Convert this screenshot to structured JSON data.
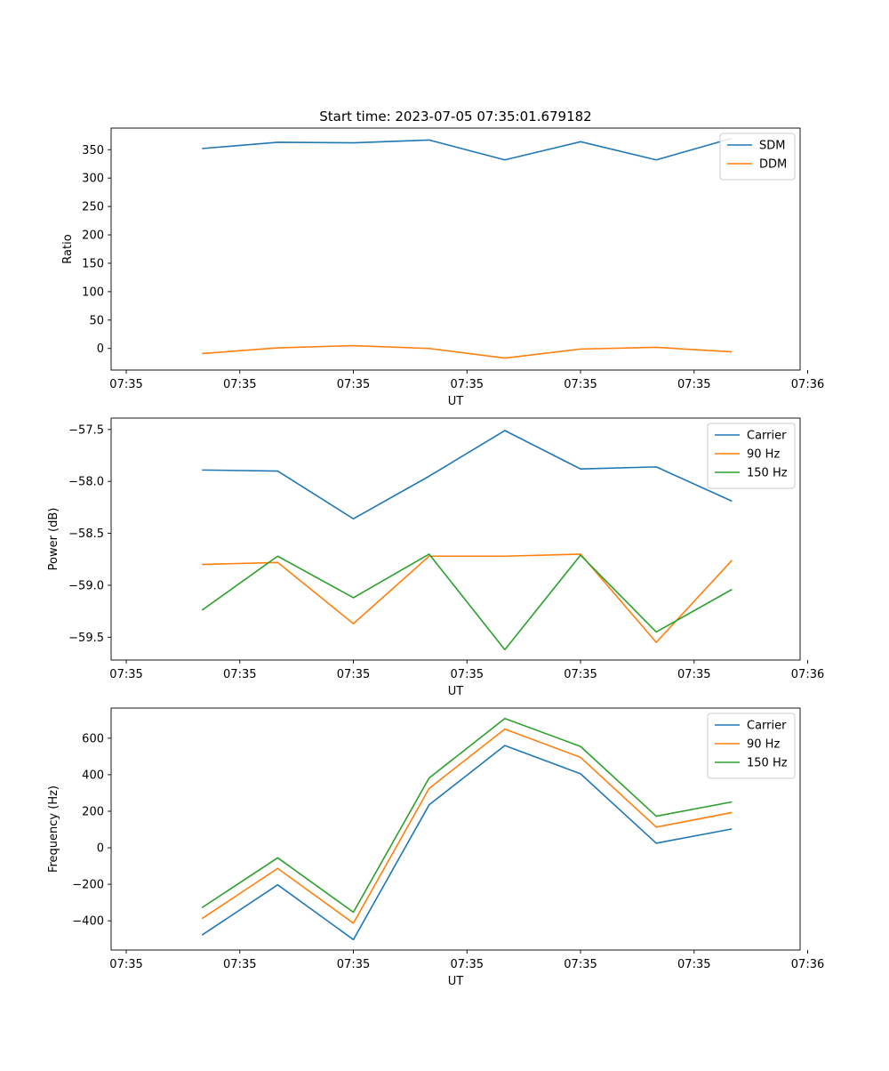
{
  "chart_data": [
    {
      "type": "line",
      "title": "Start time: 2023-07-05 07:35:01.679182",
      "xlabel": "UT",
      "ylabel": "Ratio",
      "xlim": [
        -0.1,
        4.45
      ],
      "ylim": [
        -38,
        388
      ],
      "x": [
        0.5,
        1.0,
        1.5,
        2.0,
        2.5,
        3.0,
        3.5,
        4.0
      ],
      "x_ticks": [
        0,
        0.75,
        1.5,
        2.25,
        3.0,
        3.75,
        4.5
      ],
      "x_tick_labels": [
        "07:35",
        "07:35",
        "07:35",
        "07:35",
        "07:35",
        "07:35",
        "07:36"
      ],
      "y_ticks": [
        0,
        50,
        100,
        150,
        200,
        250,
        300,
        350
      ],
      "y_tick_labels": [
        "0",
        "50",
        "100",
        "150",
        "200",
        "250",
        "300",
        "350"
      ],
      "legend_position": "top-right",
      "series": [
        {
          "name": "SDM",
          "color": "#1f77b4",
          "values": [
            352,
            363,
            362,
            367,
            332,
            364,
            332,
            370
          ]
        },
        {
          "name": "DDM",
          "color": "#ff7f0e",
          "values": [
            -9,
            1,
            5,
            0,
            -17,
            -1,
            2,
            -6
          ]
        }
      ]
    },
    {
      "type": "line",
      "title": "",
      "xlabel": "UT",
      "ylabel": "Power (dB)",
      "xlim": [
        -0.1,
        4.45
      ],
      "ylim": [
        -59.72,
        -57.39
      ],
      "x": [
        0.5,
        1.0,
        1.5,
        2.0,
        2.5,
        3.0,
        3.5,
        4.0
      ],
      "x_ticks": [
        0,
        0.75,
        1.5,
        2.25,
        3.0,
        3.75,
        4.5
      ],
      "x_tick_labels": [
        "07:35",
        "07:35",
        "07:35",
        "07:35",
        "07:35",
        "07:35",
        "07:36"
      ],
      "y_ticks": [
        -59.5,
        -59.0,
        -58.5,
        -58.0,
        -57.5
      ],
      "y_tick_labels": [
        "−59.5",
        "−59.0",
        "−58.5",
        "−58.0",
        "−57.5"
      ],
      "legend_position": "top-right",
      "series": [
        {
          "name": "Carrier",
          "color": "#1f77b4",
          "values": [
            -57.89,
            -57.9,
            -58.36,
            -57.95,
            -57.51,
            -57.88,
            -57.86,
            -58.19
          ]
        },
        {
          "name": "90 Hz",
          "color": "#ff7f0e",
          "values": [
            -58.8,
            -58.78,
            -59.37,
            -58.72,
            -58.72,
            -58.7,
            -59.55,
            -58.76
          ]
        },
        {
          "name": "150 Hz",
          "color": "#2ca02c",
          "values": [
            -59.24,
            -58.72,
            -59.12,
            -58.7,
            -59.62,
            -58.71,
            -59.45,
            -59.04
          ]
        }
      ]
    },
    {
      "type": "line",
      "title": "",
      "xlabel": "UT",
      "ylabel": "Frequency (Hz)",
      "xlim": [
        -0.1,
        4.45
      ],
      "ylim": [
        -560,
        765
      ],
      "x": [
        0.5,
        1.0,
        1.5,
        2.0,
        2.5,
        3.0,
        3.5,
        4.0
      ],
      "x_ticks": [
        0,
        0.75,
        1.5,
        2.25,
        3.0,
        3.75,
        4.5
      ],
      "x_tick_labels": [
        "07:35",
        "07:35",
        "07:35",
        "07:35",
        "07:35",
        "07:35",
        "07:36"
      ],
      "y_ticks": [
        -400,
        -200,
        0,
        200,
        400,
        600
      ],
      "y_tick_labels": [
        "−400",
        "−200",
        "0",
        "200",
        "400",
        "600"
      ],
      "legend_position": "top-right",
      "series": [
        {
          "name": "Carrier",
          "color": "#1f77b4",
          "values": [
            -478,
            -203,
            -503,
            235,
            560,
            405,
            25,
            103
          ]
        },
        {
          "name": "90 Hz",
          "color": "#ff7f0e",
          "values": [
            -388,
            -113,
            -413,
            325,
            650,
            495,
            113,
            193
          ]
        },
        {
          "name": "150 Hz",
          "color": "#2ca02c",
          "values": [
            -328,
            -55,
            -353,
            382,
            708,
            555,
            173,
            251
          ]
        }
      ]
    }
  ]
}
